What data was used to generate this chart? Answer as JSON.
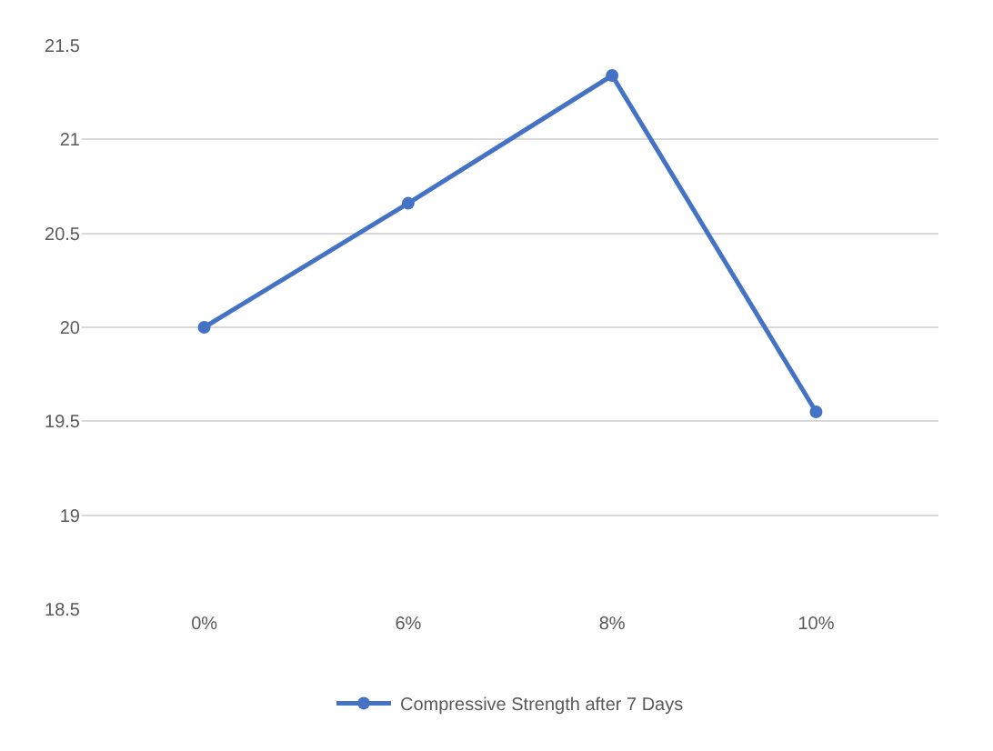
{
  "chart_data": {
    "type": "line",
    "categories": [
      "0%",
      "6%",
      "8%",
      "10%"
    ],
    "series": [
      {
        "name": "Compressive Strength after 7 Days",
        "color": "#4472c4",
        "values": [
          20.0,
          20.66,
          21.34,
          19.55
        ]
      }
    ],
    "ylim": [
      18.5,
      21.5
    ],
    "yticks": [
      18.5,
      19,
      19.5,
      20,
      20.5,
      21,
      21.5
    ],
    "grid": "y",
    "legend": "bottom",
    "marker": "circle",
    "line_style": "solid"
  }
}
